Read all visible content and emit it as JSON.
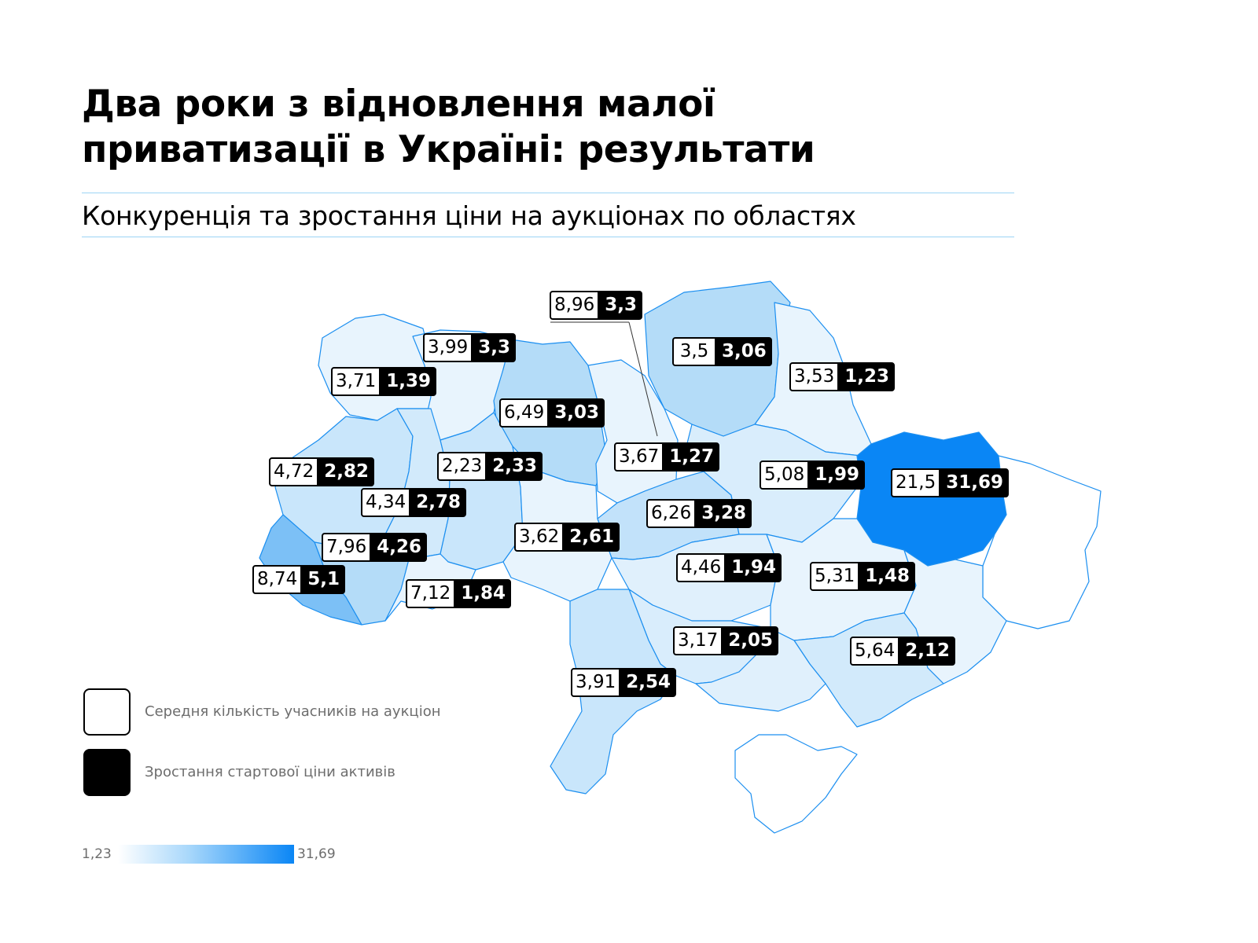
{
  "header": {
    "title_line1": "Два роки з відновлення малої",
    "title_line2": "приватизації в Україні: результати",
    "subtitle": "Конкуренція та зростання ціни на аукціонах по областях"
  },
  "colors": {
    "outline": "#1c8ff0",
    "scale_low": "#ffffff",
    "scale_high": "#0a86f5"
  },
  "regions": [
    {
      "participants": "8,96",
      "price_growth": "3,3"
    },
    {
      "participants": "3,99",
      "price_growth": "3,3"
    },
    {
      "participants": "3,71",
      "price_growth": "1,39"
    },
    {
      "participants": "3,5",
      "price_growth": "3,06"
    },
    {
      "participants": "3,53",
      "price_growth": "1,23"
    },
    {
      "participants": "6,49",
      "price_growth": "3,03"
    },
    {
      "participants": "3,67",
      "price_growth": "1,27"
    },
    {
      "participants": "4,72",
      "price_growth": "2,82"
    },
    {
      "participants": "2,23",
      "price_growth": "2,33"
    },
    {
      "participants": "5,08",
      "price_growth": "1,99"
    },
    {
      "participants": "21,5",
      "price_growth": "31,69"
    },
    {
      "participants": "4,34",
      "price_growth": "2,78"
    },
    {
      "participants": "6,26",
      "price_growth": "3,28"
    },
    {
      "participants": "3,62",
      "price_growth": "2,61"
    },
    {
      "participants": "7,96",
      "price_growth": "4,26"
    },
    {
      "participants": "4,46",
      "price_growth": "1,94"
    },
    {
      "participants": "8,74",
      "price_growth": "5,1"
    },
    {
      "participants": "7,12",
      "price_growth": "1,84"
    },
    {
      "participants": "5,31",
      "price_growth": "1,48"
    },
    {
      "participants": "3,17",
      "price_growth": "2,05"
    },
    {
      "participants": "5,64",
      "price_growth": "2,12"
    },
    {
      "participants": "3,91",
      "price_growth": "2,54"
    }
  ],
  "legend": {
    "participants_label": "Середня кількість учасників на аукціон",
    "growth_label": "Зростання стартової ціни активів"
  },
  "scale": {
    "min": "1,23",
    "max": "31,69"
  }
}
